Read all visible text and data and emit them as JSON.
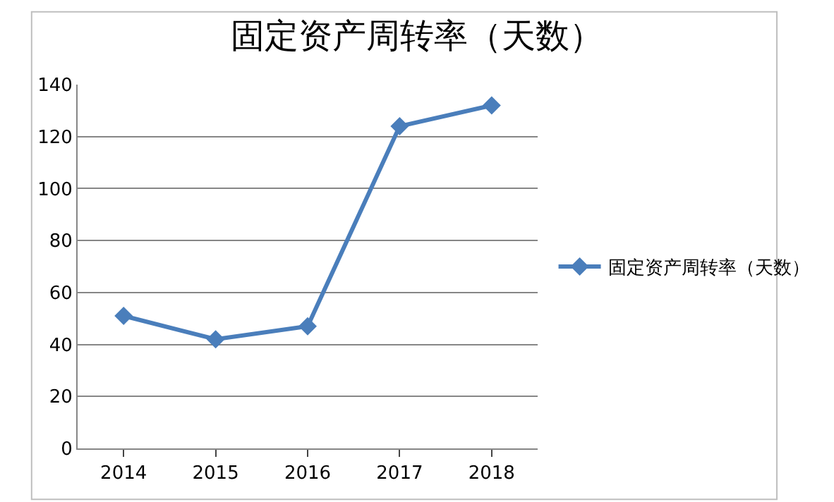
{
  "chart_data": {
    "type": "line",
    "title": "固定资产周转率（天数）",
    "categories": [
      "2014",
      "2015",
      "2016",
      "2017",
      "2018"
    ],
    "series": [
      {
        "name": "固定资产周转率（天数）",
        "color": "#4a7ebb",
        "values": [
          51,
          42,
          47,
          124,
          132
        ]
      }
    ],
    "ylim": [
      0,
      140
    ],
    "yticks": [
      0,
      20,
      40,
      60,
      80,
      100,
      120,
      140
    ],
    "grid": "y",
    "legend": "right",
    "marker": "diamond",
    "line_style": "solid"
  }
}
